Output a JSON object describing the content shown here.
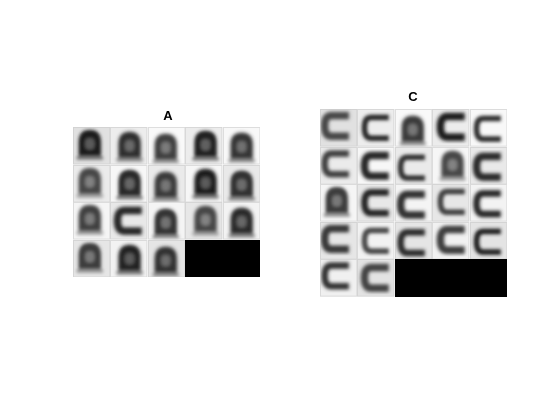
{
  "panels": [
    {
      "title": "A",
      "columns": 5,
      "tiles": [
        "A",
        "A",
        "A",
        "A",
        "A",
        "A",
        "A",
        "A",
        "A",
        "A",
        "A",
        "C",
        "A",
        "A",
        "A",
        "A",
        "A",
        "A"
      ],
      "empty_fill_color": "#000000"
    },
    {
      "title": "C",
      "columns": 5,
      "tiles": [
        "C",
        "C",
        "A",
        "C",
        "C",
        "C",
        "C",
        "C",
        "A",
        "C",
        "A",
        "C",
        "C",
        "C",
        "C",
        "C",
        "C",
        "C",
        "C",
        "C",
        "C",
        "C"
      ],
      "empty_fill_color": "#000000"
    }
  ]
}
